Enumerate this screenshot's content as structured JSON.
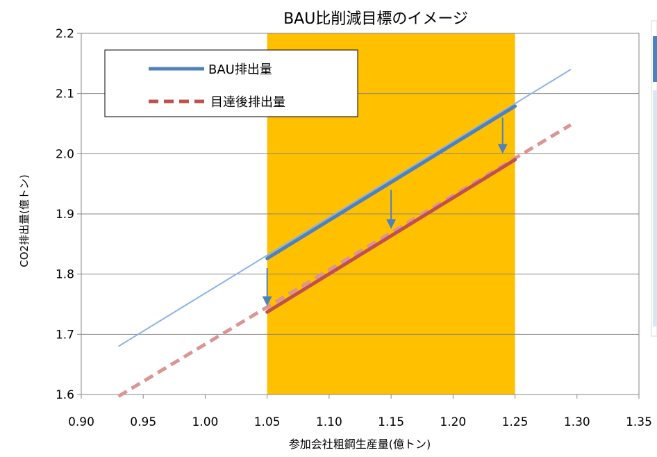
{
  "chart_data": {
    "type": "line",
    "title": "BAU比削減目標のイメージ",
    "xlabel": "参加会社粗鋼生産量(億トン)",
    "ylabel": "CO2排出量(億トン)",
    "xlim": [
      0.9,
      1.35
    ],
    "ylim": [
      1.6,
      2.2
    ],
    "x_ticks": [
      "0.90",
      "0.95",
      "1.00",
      "1.05",
      "1.10",
      "1.15",
      "1.20",
      "1.25",
      "1.30",
      "1.35"
    ],
    "y_ticks": [
      "1.6",
      "1.7",
      "1.8",
      "1.9",
      "2.0",
      "2.1",
      "2.2"
    ],
    "grid": "horizontal",
    "legend_position": "top-left",
    "shaded_range": {
      "x_from": 1.05,
      "x_to": 1.25,
      "color": "#ffc000"
    },
    "series": [
      {
        "name": "BAU排出量",
        "color": "#4f81bd",
        "style": "solid",
        "x": [
          1.05,
          1.25
        ],
        "y": [
          1.826,
          2.079
        ]
      },
      {
        "name": "目達後排出量",
        "color": "#c0504d",
        "style": "dashed",
        "x": [
          1.05,
          1.25
        ],
        "y": [
          1.737,
          1.99
        ]
      }
    ],
    "extensions": [
      {
        "color": "#8db3e2",
        "style": "thin",
        "x": [
          0.93,
          1.295
        ],
        "y": [
          1.68,
          2.14
        ]
      },
      {
        "color": "#d99694",
        "style": "dashed",
        "x": [
          0.93,
          1.295
        ],
        "y": [
          1.597,
          2.048
        ]
      }
    ],
    "arrows": [
      {
        "x": 1.05,
        "y_from": 1.81,
        "y_to": 1.747
      },
      {
        "x": 1.15,
        "y_from": 1.94,
        "y_to": 1.875
      },
      {
        "x": 1.24,
        "y_from": 2.06,
        "y_to": 2.0
      }
    ],
    "arrow_color": "#4f81bd"
  }
}
